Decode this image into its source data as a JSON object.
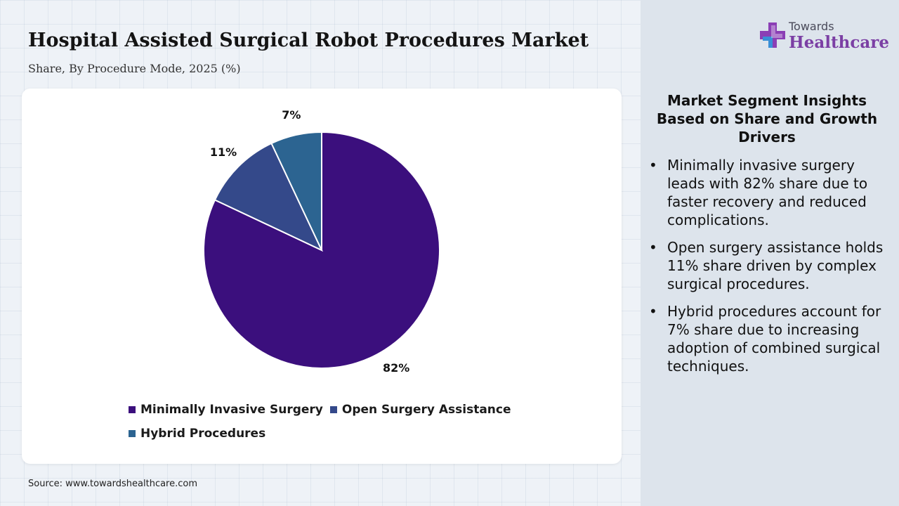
{
  "title": "Hospital Assisted Surgical Robot Procedures Market",
  "subtitle": "Share, By Procedure Mode, 2025 (%)",
  "source": "Source: www.towardshealthcare.com",
  "logo": {
    "top_text": "Towards",
    "main_text": "Healthcare",
    "icon": "cross-icon"
  },
  "insights": {
    "heading": "Market Segment Insights Based on Share and Growth Drivers",
    "bullet_symbol": "•",
    "items": [
      "Minimally invasive surgery leads with 82% share due to faster recovery and reduced complications.",
      "Open surgery assistance holds 11% share driven by complex surgical procedures.",
      "Hybrid procedures account for 7% share due to increasing adoption of combined surgical techniques."
    ]
  },
  "chart_data": {
    "type": "pie",
    "title": "Hospital Assisted Surgical Robot Procedures Market",
    "subtitle": "Share, By Procedure Mode, 2025 (%)",
    "categories": [
      "Minimally Invasive Surgery",
      "Open Surgery Assistance",
      "Hybrid Procedures"
    ],
    "values": [
      82,
      11,
      7
    ],
    "labels": [
      "82%",
      "11%",
      "7%"
    ],
    "colors": [
      "#3b0f7d",
      "#34498a",
      "#2c6491"
    ],
    "legend_position": "bottom",
    "start_angle_deg": 0,
    "direction": "clockwise"
  }
}
